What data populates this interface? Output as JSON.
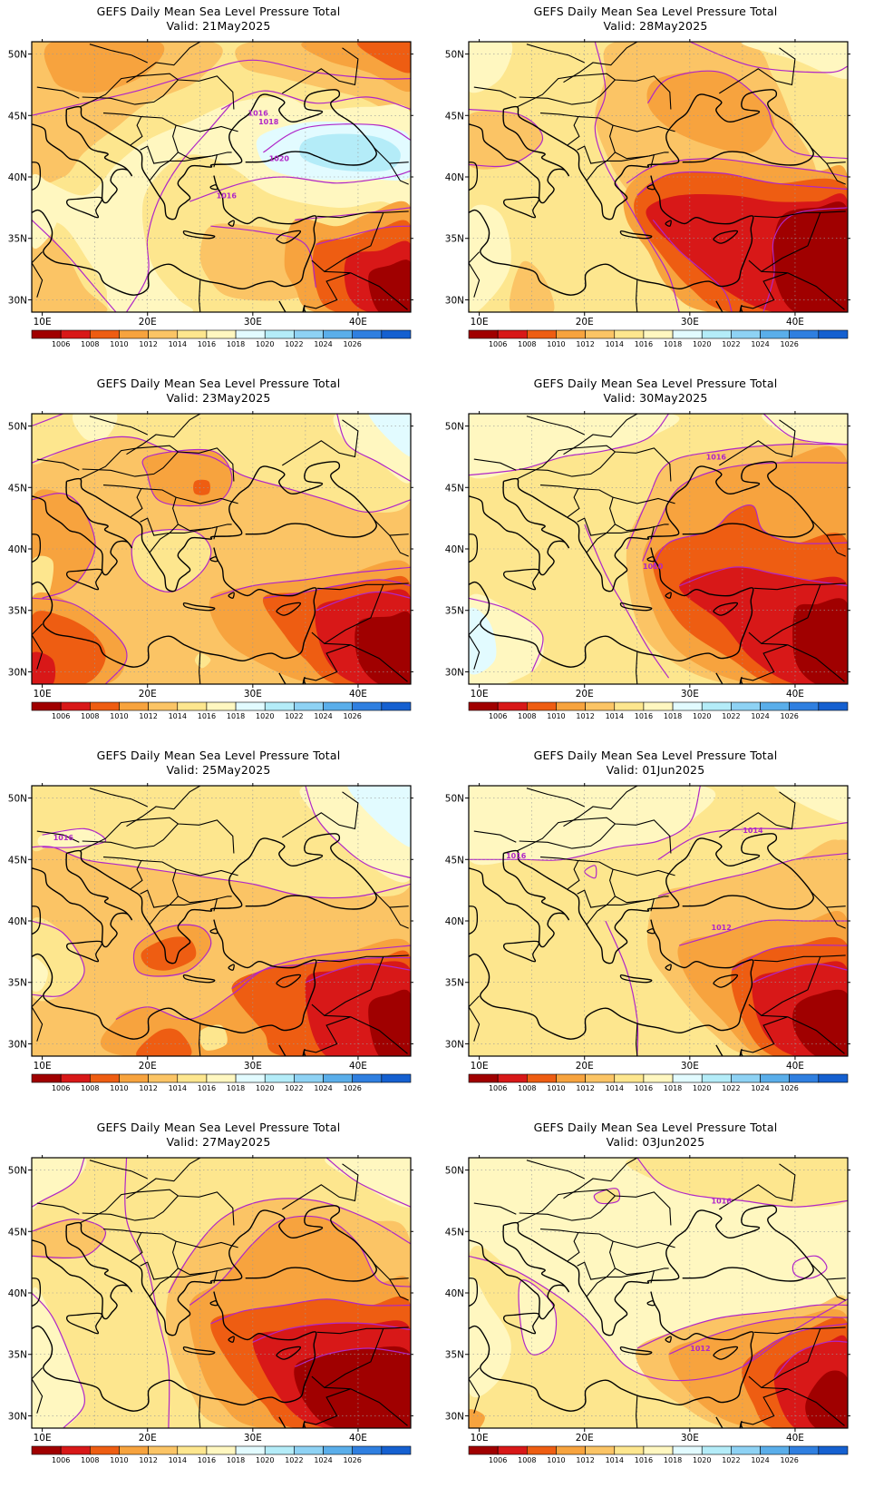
{
  "panels": [
    {
      "title": "GEFS Daily Mean Sea Level Pressure Total",
      "valid": "Valid: 21May2025",
      "contour_labels": [
        "1016",
        "1018",
        "1020",
        "1016"
      ]
    },
    {
      "title": "GEFS Daily Mean Sea Level Pressure Total",
      "valid": "Valid: 28May2025",
      "contour_labels": []
    },
    {
      "title": "GEFS Daily Mean Sea Level Pressure Total",
      "valid": "Valid: 23May2025",
      "contour_labels": []
    },
    {
      "title": "GEFS Daily Mean Sea Level Pressure Total",
      "valid": "Valid: 30May2025",
      "contour_labels": [
        "1016",
        "1010"
      ]
    },
    {
      "title": "GEFS Daily Mean Sea Level Pressure Total",
      "valid": "Valid: 25May2025",
      "contour_labels": [
        "1016"
      ]
    },
    {
      "title": "GEFS Daily Mean Sea Level Pressure Total",
      "valid": "Valid: 01Jun2025",
      "contour_labels": [
        "1016",
        "1014",
        "1012"
      ]
    },
    {
      "title": "GEFS Daily Mean Sea Level Pressure Total",
      "valid": "Valid: 27May2025",
      "contour_labels": []
    },
    {
      "title": "GEFS Daily Mean Sea Level Pressure Total",
      "valid": "Valid: 03Jun2025",
      "contour_labels": [
        "1016",
        "1012"
      ]
    }
  ],
  "axes": {
    "lat_ticks": [
      "50N",
      "45N",
      "40N",
      "35N",
      "30N"
    ],
    "lon_ticks": [
      "10E",
      "20E",
      "30E",
      "40E"
    ]
  },
  "colorbar": {
    "labels": [
      "1006",
      "1008",
      "1010",
      "1012",
      "1014",
      "1016",
      "1018",
      "1020",
      "1022",
      "1024",
      "1026"
    ],
    "colors": [
      "#a00000",
      "#d81818",
      "#ee5d12",
      "#f7a33e",
      "#fbc465",
      "#fde68e",
      "#fff7c0",
      "#e2fbff",
      "#b4ecf8",
      "#8ed2f4",
      "#5aaeea",
      "#2f7fe0",
      "#1560d0"
    ]
  },
  "colors": {
    "contour": "#b026c8",
    "coast": "#000000",
    "grid": "#999999"
  }
}
